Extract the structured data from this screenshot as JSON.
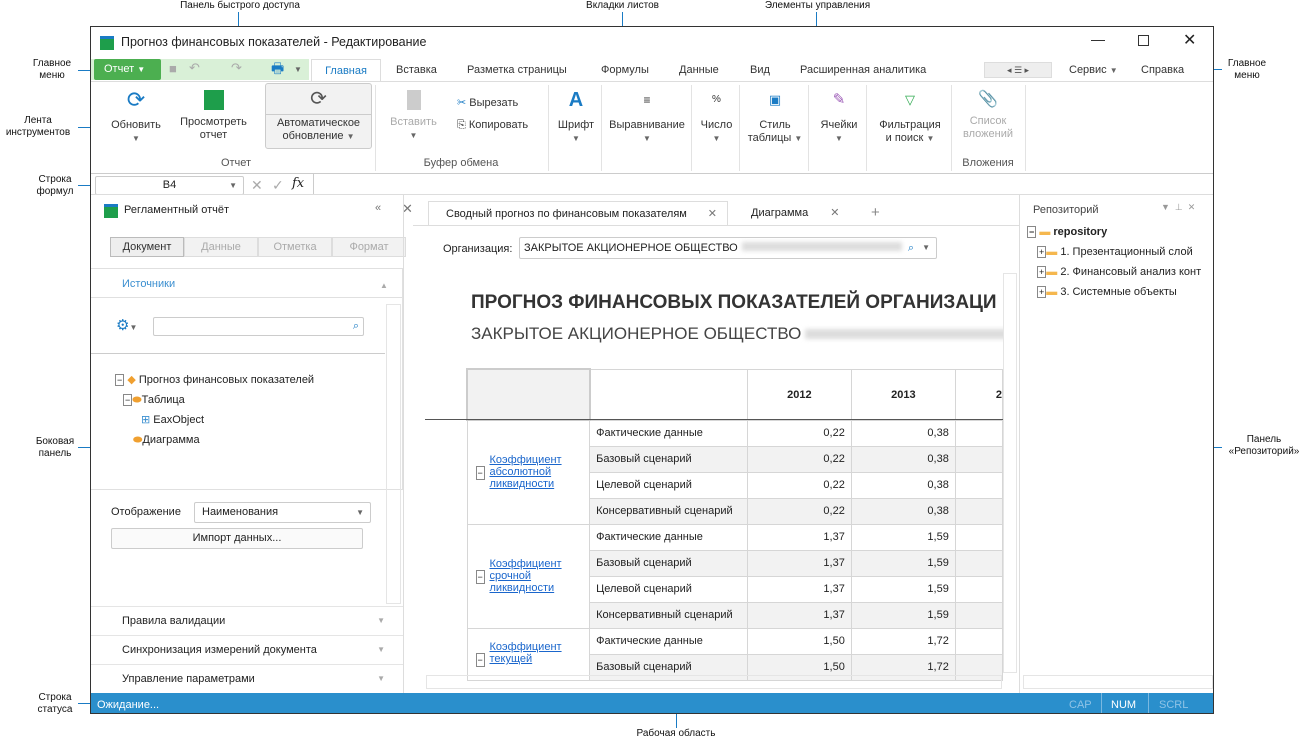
{
  "annotations": {
    "quick_access": "Панель быстрого доступа",
    "sheet_tabs": "Вкладки листов",
    "controls": "Элементы управления",
    "main_menu_left": "Главное меню",
    "ribbon": "Лента инструментов",
    "formula_bar": "Строка формул",
    "side_panel": "Боковая панель",
    "status_bar": "Строка статуса",
    "work_area": "Рабочая область",
    "main_menu_right": "Главное меню",
    "repo_panel": "Панель «Репозиторий»"
  },
  "window": {
    "title": "Прогноз финансовых показателей - Редактирование"
  },
  "menu": {
    "report_button": "Отчет",
    "tabs": [
      "Главная",
      "Вставка",
      "Разметка страницы",
      "Формулы",
      "Данные",
      "Вид",
      "Расширенная аналитика"
    ],
    "service": "Сервис",
    "help": "Справка"
  },
  "ribbon": {
    "refresh": "Обновить",
    "view_report": [
      "Просмотреть",
      "отчет"
    ],
    "auto_update": [
      "Автоматическое",
      "обновление"
    ],
    "group_report": "Отчет",
    "paste": "Вставить",
    "cut": "Вырезать",
    "copy": "Копировать",
    "group_clipboard": "Буфер обмена",
    "font": "Шрифт",
    "align": "Выравнивание",
    "number": "Число",
    "table_style": [
      "Стиль",
      "таблицы"
    ],
    "cells": "Ячейки",
    "filter": [
      "Фильтрация",
      "и поиск"
    ],
    "attachments_list": [
      "Список",
      "вложений"
    ],
    "group_attachments": "Вложения"
  },
  "formula": {
    "cell_ref": "B4",
    "value": ""
  },
  "side": {
    "title": "Регламентный отчёт",
    "segments": [
      "Документ",
      "Данные",
      "Отметка",
      "Формат"
    ],
    "sources": "Источники",
    "search_placeholder": "",
    "tree": [
      "Прогноз финансовых показателей",
      "Таблица",
      "EaxObject",
      "Диаграмма"
    ],
    "display_label": "Отображение",
    "display_value": "Наименования",
    "import": "Импорт данных...",
    "sections": [
      "Правила валидации",
      "Синхронизация измерений документа",
      "Управление параметрами"
    ]
  },
  "sheet": {
    "tabs": [
      "Сводный прогноз по финансовым показателям",
      "Диаграмма"
    ],
    "org_label": "Организация:",
    "org_value": "ЗАКРЫТОЕ АКЦИОНЕРНОЕ ОБЩЕСТВО",
    "title": "ПРОГНОЗ ФИНАНСОВЫХ ПОКАЗАТЕЛЕЙ ОРГАНИЗАЦИ",
    "subtitle": "ЗАКРЫТОЕ АКЦИОНЕРНОЕ ОБЩЕСТВО",
    "years": [
      "2012",
      "2013",
      "2"
    ],
    "groups": [
      {
        "name": "Коэффициент абсолютной ликвидности",
        "rows": [
          [
            "Фактические данные",
            "0,22",
            "0,38"
          ],
          [
            "Базовый сценарий",
            "0,22",
            "0,38"
          ],
          [
            "Целевой сценарий",
            "0,22",
            "0,38"
          ],
          [
            "Консервативный сценарий",
            "0,22",
            "0,38"
          ]
        ]
      },
      {
        "name": "Коэффициент срочной ликвидности",
        "rows": [
          [
            "Фактические данные",
            "1,37",
            "1,59"
          ],
          [
            "Базовый сценарий",
            "1,37",
            "1,59"
          ],
          [
            "Целевой сценарий",
            "1,37",
            "1,59"
          ],
          [
            "Консервативный сценарий",
            "1,37",
            "1,59"
          ]
        ]
      },
      {
        "name": "Коэффициент текущей",
        "rows": [
          [
            "Фактические данные",
            "1,50",
            "1,72"
          ],
          [
            "Базовый сценарий",
            "1,50",
            "1,72"
          ]
        ]
      }
    ]
  },
  "repo": {
    "title": "Репозиторий",
    "root": "repository",
    "items": [
      "1. Презентационный слой",
      "2. Финансовый анализ конт",
      "3. Системные объекты"
    ]
  },
  "status": {
    "text": "Ожидание...",
    "cap": "CAP",
    "num": "NUM",
    "scrl": "SCRL"
  },
  "colors": {
    "accent": "#2a8fcc",
    "report_button": "#4caf50",
    "link": "#1a66cc"
  }
}
